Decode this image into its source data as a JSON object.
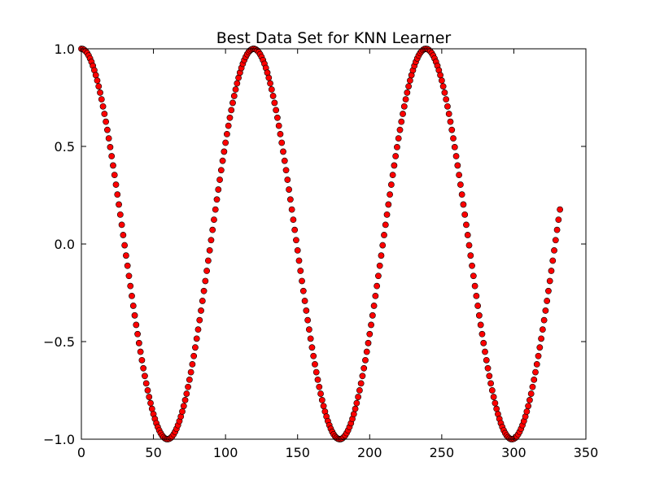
{
  "chart_data": {
    "type": "scatter",
    "title": "Best Data Set for KNN Learner",
    "xlabel": "",
    "ylabel": "",
    "xlim": [
      0,
      350
    ],
    "ylim": [
      -1.0,
      1.0
    ],
    "x_ticks": [
      0,
      50,
      100,
      150,
      200,
      250,
      300,
      350
    ],
    "x_tick_labels": [
      "0",
      "50",
      "100",
      "150",
      "200",
      "250",
      "300",
      "350"
    ],
    "y_ticks": [
      -1.0,
      -0.5,
      0.0,
      0.5,
      1.0
    ],
    "y_tick_labels": [
      "−1.0",
      "−0.5",
      "0.0",
      "0.5",
      "1.0"
    ],
    "grid": false,
    "legend": "none",
    "marker_color": "#ff0000",
    "marker_edge_color": "#000000",
    "series": [
      {
        "x_start": 0,
        "x_end": 332,
        "x_step": 1,
        "formula": "y = cos(2*pi*x/119.5)"
      }
    ]
  }
}
